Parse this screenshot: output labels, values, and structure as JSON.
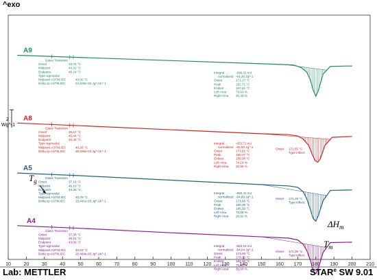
{
  "chart_data": {
    "type": "line",
    "y_top_label": "^exo",
    "y_scale_value": "2",
    "y_scale_unit": "Wg^-1",
    "xlim": [
      10,
      210
    ],
    "x_ticks": [
      10,
      20,
      30,
      40,
      50,
      60,
      70,
      80,
      90,
      100,
      110,
      120,
      130,
      140,
      150,
      160,
      170,
      180,
      190,
      200,
      210
    ],
    "x_tick_labels": [
      "10",
      "20",
      "30",
      "40",
      "50",
      "60",
      "70",
      "80",
      "90",
      "100",
      "110",
      "120",
      "130",
      "140",
      "150",
      "160",
      "170",
      "180",
      "190",
      "200",
      "210"
    ],
    "footer_left": "Lab: METTLER",
    "footer_right_a": "STAR",
    "footer_right_sup": "e",
    "footer_right_b": " SW 9.01",
    "series": [
      {
        "name": "A9",
        "color": "#1e8a6a",
        "x": [
          15,
          50,
          100,
          150,
          163,
          168,
          172,
          175,
          177,
          178.5,
          180,
          181.5,
          184,
          188,
          200
        ],
        "baseline_y": [
          4.5,
          4.75,
          5.1,
          5.45,
          5.55,
          5.6,
          5.9,
          6.4,
          7.3,
          8.4,
          9.1,
          8.4,
          6.6,
          5.75,
          5.7
        ],
        "hatch": [
          163,
          186
        ],
        "glass": {
          "title": "Glass Transition",
          "rows": [
            {
              "label": "Onset",
              "value": "33,75 °C"
            },
            {
              "label": "Midpoint",
              "value": "44,32 °C"
            },
            {
              "label": "Endpoint",
              "value": "46,24 °C"
            },
            {
              "label": "Type sigmoidal",
              "value": ""
            },
            {
              "label": "Midpoint ASTM,IEC",
              "value": "40,00 °C"
            },
            {
              "label": "Delta cp ASTM,IEC",
              "value": "54,826e-03 Jg^-1K^-1"
            }
          ]
        },
        "integral": {
          "rows": [
            {
              "label": "Integral",
              "value": "-696,32 mJ"
            },
            {
              "label": "normalized",
              "value": "-64,30 Jg^-1"
            },
            {
              "label": "Onset",
              "value": "171,37 °C"
            },
            {
              "label": "Peak",
              "value": "182,71 °C"
            },
            {
              "label": "Endset",
              "value": "187,61 °C"
            },
            {
              "label": "Left Area",
              "value": "79,60 %"
            },
            {
              "label": "Right Area",
              "value": "20,40 %"
            }
          ]
        },
        "onset": null
      },
      {
        "name": "A8",
        "color": "#d42020",
        "x": [
          15,
          50,
          100,
          150,
          165,
          170,
          173,
          176,
          178,
          179.5,
          181,
          182.5,
          185,
          189,
          200
        ],
        "baseline_y": [
          12.1,
          12.4,
          12.85,
          13.3,
          13.4,
          13.55,
          13.9,
          14.6,
          15.6,
          16.3,
          16.5,
          16.1,
          14.6,
          13.7,
          13.6
        ],
        "hatch": [
          150,
          188
        ],
        "glass": {
          "title": "Glass Transition",
          "rows": [
            {
              "label": "Onset",
              "value": "35,67 °C"
            },
            {
              "label": "Midpoint",
              "value": "46,44 °C"
            },
            {
              "label": "Endpoint",
              "value": "45,48 °C"
            },
            {
              "label": "Type sigmoidal",
              "value": ""
            },
            {
              "label": "Midpoint ASTM,IEC",
              "value": "40,26 °C"
            },
            {
              "label": "Delta cp ASTM,IEC",
              "value": "38,295e-03 Jg^-1K^-1"
            }
          ]
        },
        "integral": {
          "rows": [
            {
              "label": "Integral",
              "value": "-653,71 mJ"
            },
            {
              "label": "normalized",
              "value": "-65,83 Jg^-1"
            },
            {
              "label": "Onset",
              "value": "172,82 °C"
            },
            {
              "label": "Peak",
              "value": "180,07 °C"
            },
            {
              "label": "Endset",
              "value": "186,56 °C"
            },
            {
              "label": "Left Area",
              "value": "74,14 %"
            },
            {
              "label": "Right Area",
              "value": "25,86 %"
            }
          ]
        },
        "onset": {
          "label": "Onset",
          "value": "171,65 °C",
          "type": "Type inflect."
        }
      },
      {
        "name": "A5",
        "color": "#1f5f80",
        "x": [
          15,
          50,
          100,
          150,
          165,
          170,
          173,
          175,
          177,
          178.5,
          180,
          181.5,
          184,
          188,
          200
        ],
        "baseline_y": [
          17.7,
          18.0,
          18.5,
          19.0,
          19.15,
          19.3,
          19.8,
          20.6,
          21.8,
          22.8,
          23.1,
          22.4,
          20.8,
          19.65,
          19.6
        ],
        "hatch": [
          150,
          186
        ],
        "glass": {
          "title": "Glass Transition",
          "rows": [
            {
              "label": "Onset",
              "value": "37,18 °C"
            },
            {
              "label": "Midpoint",
              "value": "46,10 °C"
            },
            {
              "label": "Endpoint",
              "value": "44,38 °C"
            },
            {
              "label": "Type sigmoidal",
              "value": ""
            },
            {
              "label": "Midpoint ASTM,IEC",
              "value": "40,78 °C"
            },
            {
              "label": "Delta cp ASTM,IEC",
              "value": "23,441e-03 Jg^-1K^-1"
            }
          ]
        },
        "integral": {
          "rows": [
            {
              "label": "Integral",
              "value": "-680,41 mJ"
            },
            {
              "label": "normalized",
              "value": "-64,80 Jg^-1"
            },
            {
              "label": "Onset",
              "value": "173,65 °C"
            },
            {
              "label": "Peak",
              "value": "180,05 °C"
            },
            {
              "label": "Endset",
              "value": "185,59 °C"
            },
            {
              "label": "Left Area",
              "value": "73,08 %"
            },
            {
              "label": "Right Area",
              "value": "26,92 %"
            }
          ]
        },
        "onset": {
          "label": "Onset",
          "value": "171,26 °C",
          "type": "Type inflect."
        }
      },
      {
        "name": "A4",
        "color": "#8b1a8b",
        "x": [
          15,
          50,
          100,
          150,
          165,
          170,
          173,
          175,
          177,
          178.5,
          180,
          181.5,
          184,
          188,
          200
        ],
        "baseline_y": [
          23.6,
          23.9,
          24.4,
          24.85,
          25.0,
          25.2,
          25.7,
          26.4,
          27.5,
          28.7,
          29.0,
          28.3,
          26.6,
          25.5,
          25.45
        ],
        "hatch": [
          150,
          186
        ],
        "glass": {
          "title": "Glass Transition",
          "rows": [
            {
              "label": "Onset",
              "value": "37,36 °C"
            },
            {
              "label": "Midpoint",
              "value": "46,91 °C"
            },
            {
              "label": "Endpoint",
              "value": "43,09 °C"
            },
            {
              "label": "Type sigmoidal",
              "value": ""
            },
            {
              "label": "Midpoint ASTM,IEC",
              "value": "40,63 °C"
            },
            {
              "label": "Delta cp ASTM,IEC",
              "value": "20,464e-03 Jg^-1K^-1"
            }
          ]
        },
        "integral": {
          "rows": [
            {
              "label": "Integral",
              "value": "-653,19 mJ"
            },
            {
              "label": "normalized",
              "value": "-64,04 Jg^-1"
            },
            {
              "label": "Onset",
              "value": "173,00 °C"
            },
            {
              "label": "Peak",
              "value": "179,35 °C"
            },
            {
              "label": "Endset",
              "value": "184,99 °C"
            },
            {
              "label": "Left Area",
              "value": "70,00 %"
            },
            {
              "label": "Right Area",
              "value": "30,00 %"
            }
          ]
        },
        "onset": {
          "label": "Onset",
          "value": "171,05 °C",
          "type": "Type inflect."
        }
      }
    ],
    "annotations": {
      "tg_main": "T",
      "tg_sub": "g",
      "dh_main": "ΔH",
      "dh_sub": "m",
      "tm_main": "T",
      "tm_sub": "m"
    }
  }
}
